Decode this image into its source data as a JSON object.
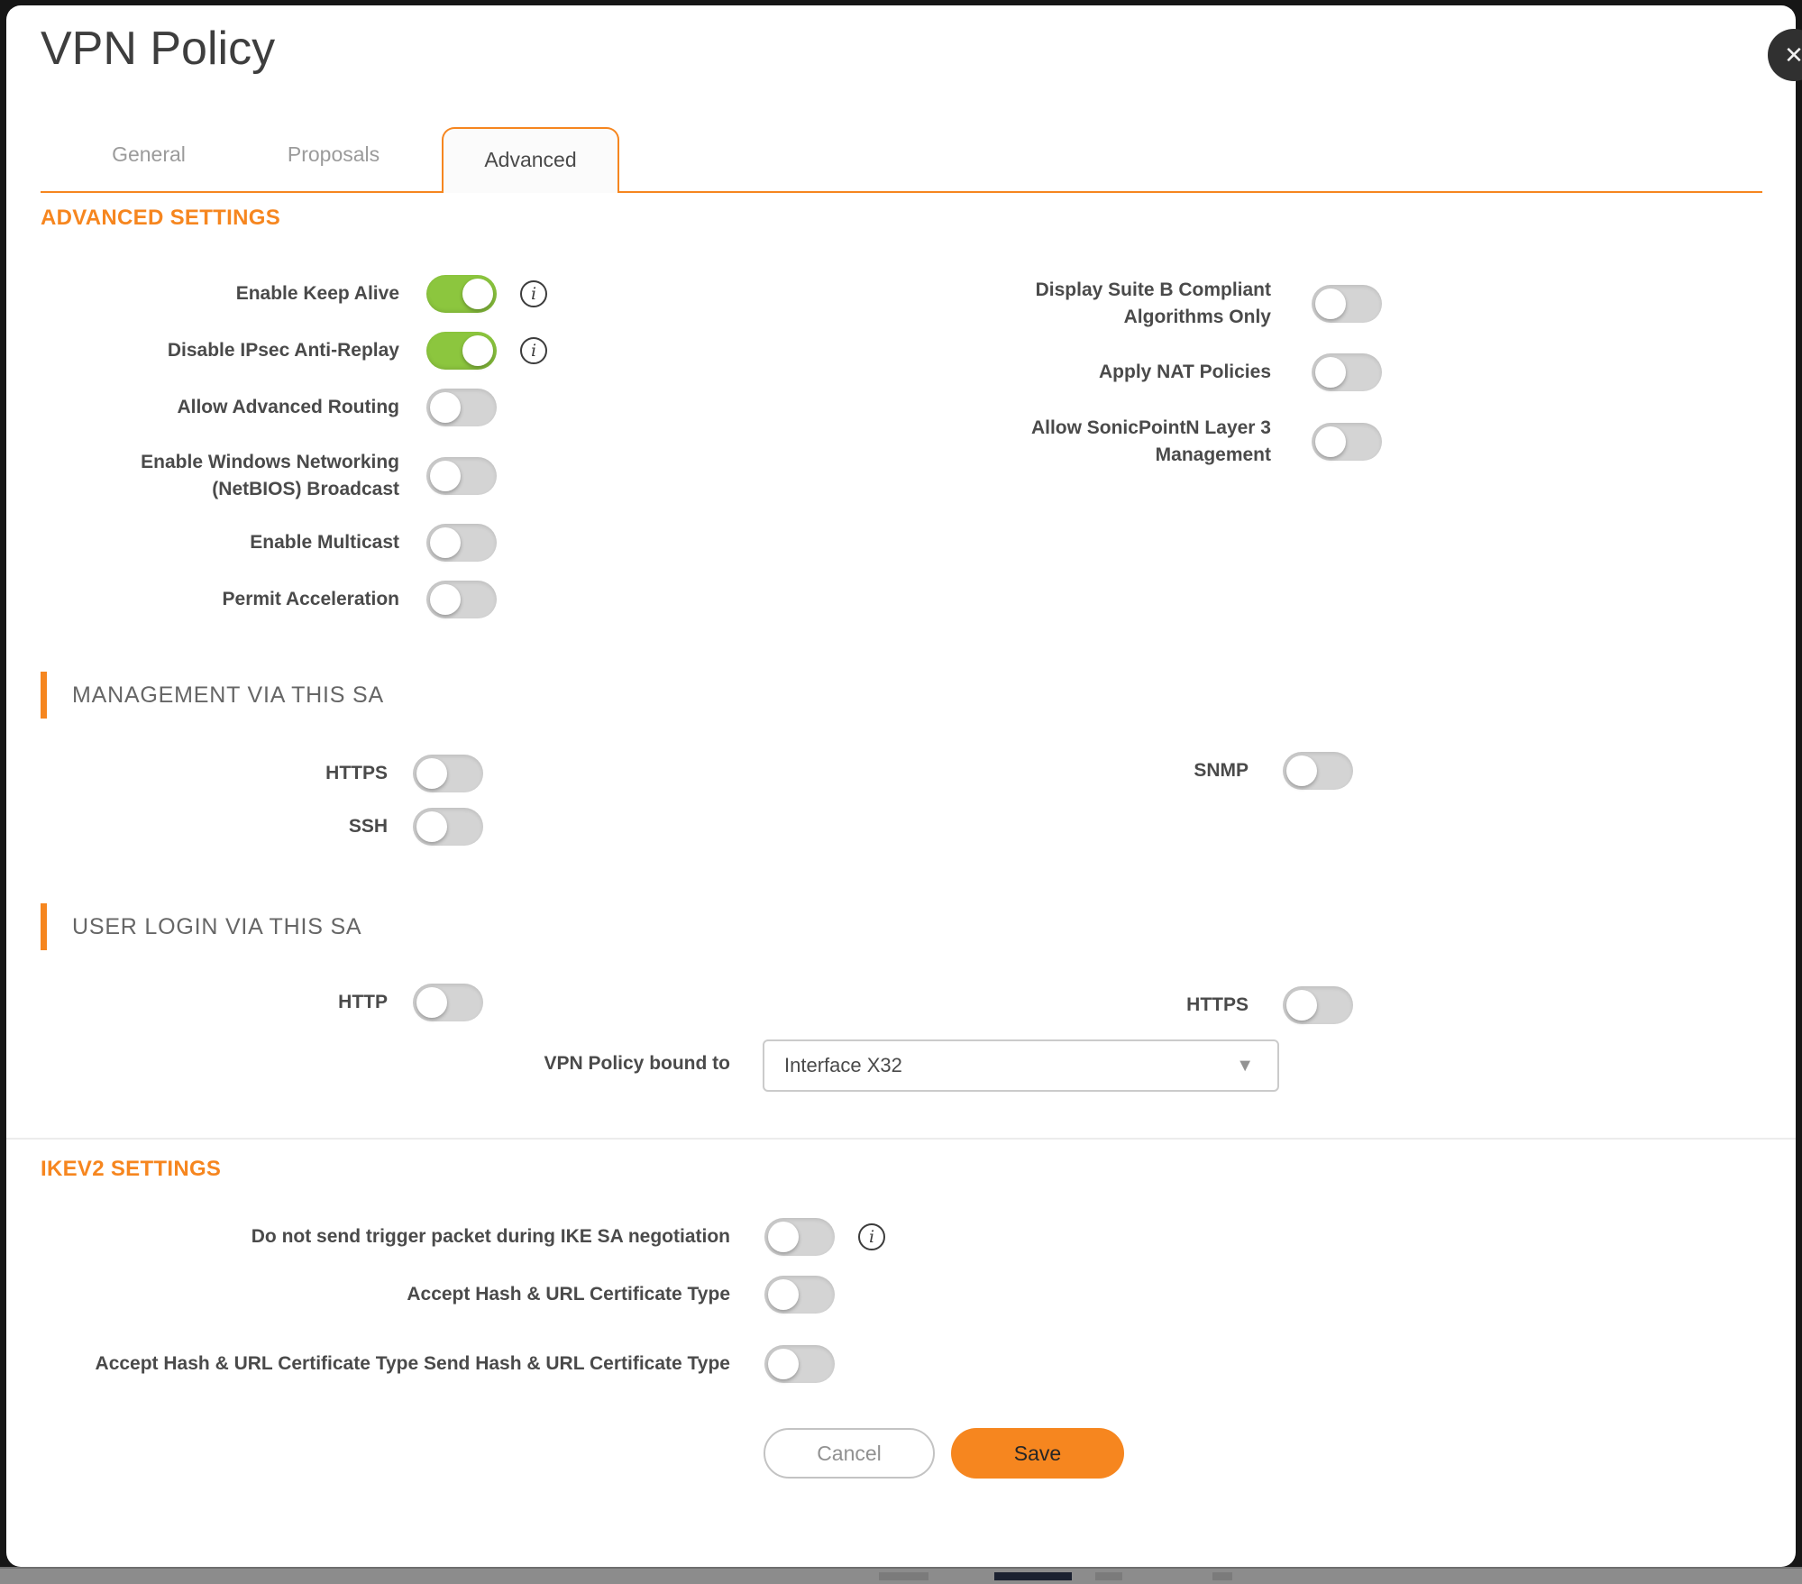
{
  "dialog": {
    "title": "VPN Policy"
  },
  "icons": {
    "close": "✕",
    "info": "i",
    "caret": "▼"
  },
  "tabs": [
    {
      "label": "General",
      "state": "inactive"
    },
    {
      "label": "Proposals",
      "state": "inactive"
    },
    {
      "label": "Advanced",
      "state": "active"
    }
  ],
  "advanced_settings": {
    "heading": "ADVANCED SETTINGS",
    "left": [
      {
        "label": "Enable Keep Alive",
        "state": "on"
      },
      {
        "label": "Disable IPsec Anti-Replay",
        "state": "on"
      },
      {
        "label": "Allow Advanced Routing",
        "state": "off"
      },
      {
        "label": "Enable Windows Networking (NetBIOS) Broadcast",
        "state": "off"
      },
      {
        "label": "Enable Multicast",
        "state": "off"
      },
      {
        "label": "Permit Acceleration",
        "state": "off"
      }
    ],
    "right": [
      {
        "label": "Display Suite B Compliant Algorithms Only",
        "state": "off"
      },
      {
        "label": "Apply NAT Policies",
        "state": "off"
      },
      {
        "label": "Allow SonicPointN Layer 3 Management",
        "state": "off"
      }
    ]
  },
  "management": {
    "heading": "MANAGEMENT VIA THIS SA",
    "left": [
      {
        "label": "HTTPS",
        "state": "off"
      },
      {
        "label": "SSH",
        "state": "off"
      }
    ],
    "right": [
      {
        "label": "SNMP",
        "state": "off"
      }
    ]
  },
  "user_login": {
    "heading": "USER LOGIN VIA THIS SA",
    "left": [
      {
        "label": "HTTP",
        "state": "off"
      }
    ],
    "right": [
      {
        "label": "HTTPS",
        "state": "off"
      }
    ],
    "bound_to_label": "VPN Policy bound to",
    "bound_to_value": "Interface X32"
  },
  "ikev2": {
    "heading": "IKEV2 SETTINGS",
    "rows": [
      {
        "label": "Do not send trigger packet during IKE SA negotiation",
        "state": "off"
      },
      {
        "label": "Accept Hash & URL Certificate Type",
        "state": "off"
      },
      {
        "label": "Accept Hash & URL Certificate Type Send Hash & URL Certificate Type",
        "state": "off"
      }
    ]
  },
  "footer": {
    "cancel_label": "Cancel",
    "save_label": "Save"
  },
  "colors": {
    "accent_orange": "#f6861f",
    "toggle_on_green": "#8cc63e",
    "toggle_off_gray": "#d4d4d4"
  }
}
